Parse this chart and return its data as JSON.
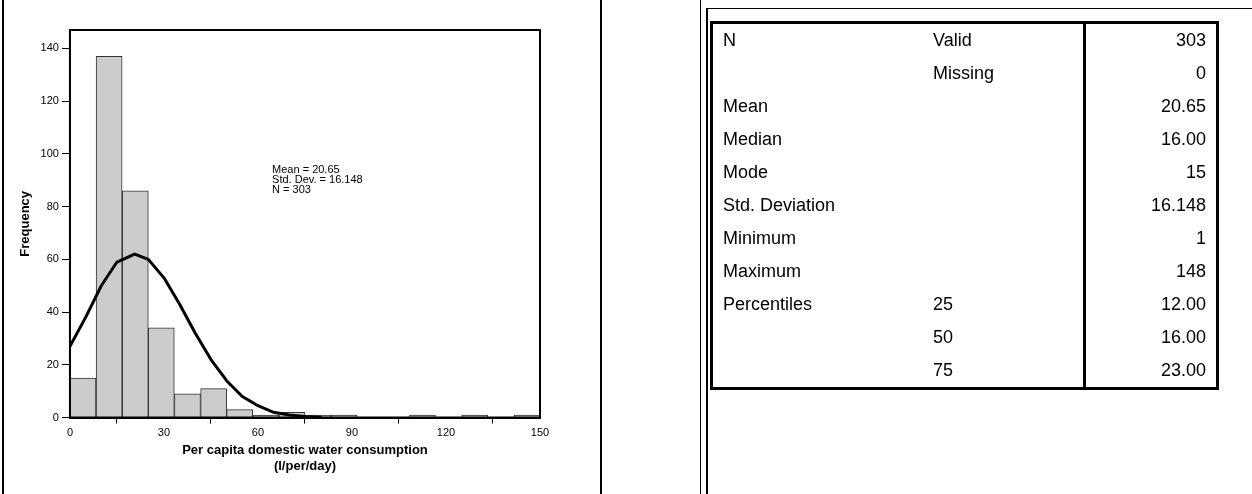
{
  "chart_data": [
    {
      "type": "histogram",
      "xlabel": "Per capita domestic water consumption\n(l/per/day)",
      "ylabel": "Frequency",
      "bins": [
        0,
        8.3,
        16.7,
        25,
        33.3,
        41.7,
        50,
        58.3,
        66.7,
        75,
        83.3,
        91.7,
        100,
        108.3,
        116.7,
        125,
        133.3,
        141.7,
        150
      ],
      "values": [
        15,
        137,
        86,
        34,
        9,
        11,
        3,
        1,
        2,
        1,
        1,
        0,
        0,
        1,
        0,
        1,
        0,
        1
      ],
      "color": "#cccccc",
      "series": [
        {
          "type": "line",
          "color": "#000000",
          "x": [
            0,
            5,
            10,
            15,
            20.65,
            25,
            30,
            35,
            40,
            45,
            50,
            55,
            60,
            65,
            70,
            75,
            80
          ],
          "values": [
            27,
            38,
            50,
            59,
            62,
            60,
            53,
            43,
            32,
            22,
            14,
            8,
            4.5,
            2,
            1,
            0.4,
            0.1
          ]
        }
      ],
      "xlim": [
        0,
        150
      ],
      "xticks": [
        0,
        30,
        60,
        90,
        120,
        150
      ],
      "ylim": [
        0,
        147
      ],
      "yticks": [
        0,
        20,
        40,
        60,
        80,
        100,
        120,
        140
      ],
      "grid": false,
      "marker": "none",
      "line_style": "solid",
      "annotations": [
        "Mean = 20.65",
        "Std. Dev. = 16.148",
        "N = 303"
      ]
    },
    {
      "type": "other",
      "categories": [
        "N",
        null,
        "Mean",
        "Median",
        "Mode",
        "Std. Deviation",
        "Minimum",
        "Maximum",
        "Percentiles",
        null,
        null
      ],
      "y2_categories": [
        "Valid",
        "Missing",
        null,
        null,
        null,
        null,
        null,
        null,
        "25",
        "50",
        "75"
      ],
      "values": [
        303,
        0,
        20.65,
        16,
        15,
        16.148,
        1,
        148,
        12,
        16,
        23
      ],
      "value_labels": [
        "303",
        "0",
        "20.65",
        "16.00",
        "15",
        "16.148",
        "1",
        "148",
        "12.00",
        "16.00",
        "23.00"
      ]
    }
  ]
}
